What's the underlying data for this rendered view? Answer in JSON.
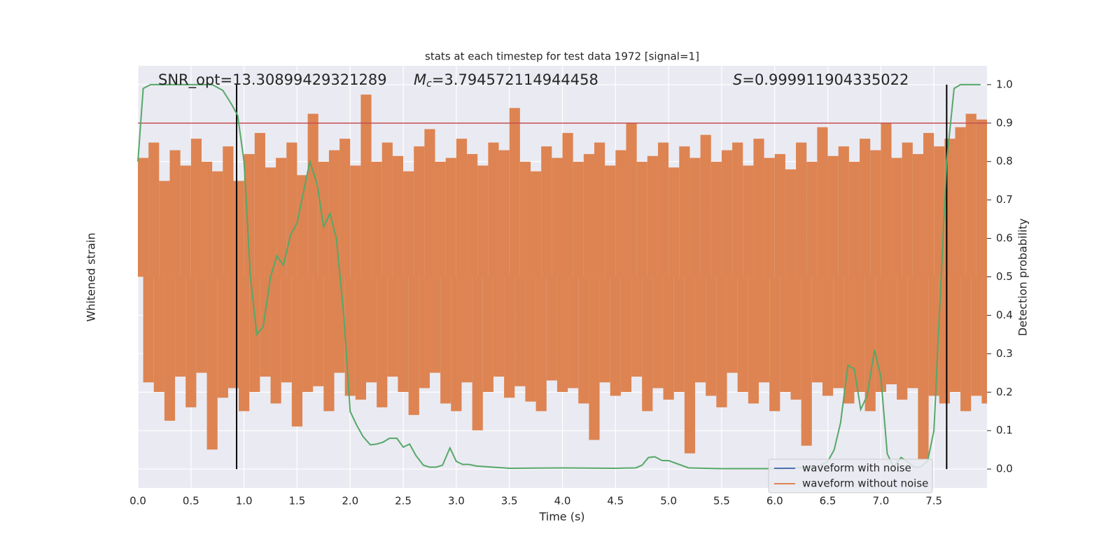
{
  "chart_data": {
    "type": "line",
    "title": "stats at each timestep for test data 1972 [signal=1]",
    "annotations": [
      {
        "text": "SNR_opt=13.30899429321289"
      },
      {
        "symbol": "M",
        "sub": "c",
        "text": "=3.794572114944458"
      },
      {
        "symbol": "S",
        "text": "=0.999911904335022"
      }
    ],
    "xlabel": "Time (s)",
    "ylabel": "Whitened strain",
    "y2label": "Detection probability",
    "xlim": [
      0,
      8.0
    ],
    "xticks": [
      {
        "value": 0,
        "label": "0.0"
      },
      {
        "value": 0.5,
        "label": "0.5"
      },
      {
        "value": 1,
        "label": "1.0"
      },
      {
        "value": 1.5,
        "label": "1.5"
      },
      {
        "value": 2,
        "label": "2.0"
      },
      {
        "value": 2.5,
        "label": "2.5"
      },
      {
        "value": 3,
        "label": "3.0"
      },
      {
        "value": 3.5,
        "label": "3.5"
      },
      {
        "value": 4,
        "label": "4.0"
      },
      {
        "value": 4.5,
        "label": "4.5"
      },
      {
        "value": 5,
        "label": "5.0"
      },
      {
        "value": 5.5,
        "label": "5.5"
      },
      {
        "value": 6,
        "label": "6.0"
      },
      {
        "value": 6.5,
        "label": "6.5"
      },
      {
        "value": 7,
        "label": "7.0"
      },
      {
        "value": 7.5,
        "label": "7.5"
      }
    ],
    "ylim": [
      -1.1,
      1.1
    ],
    "y2lim": [
      -0.049,
      1.049
    ],
    "y2ticks": [
      {
        "value": 0,
        "label": "0.0"
      },
      {
        "value": 0.1,
        "label": "0.1"
      },
      {
        "value": 0.2,
        "label": "0.2"
      },
      {
        "value": 0.3,
        "label": "0.3"
      },
      {
        "value": 0.4,
        "label": "0.4"
      },
      {
        "value": 0.5,
        "label": "0.5"
      },
      {
        "value": 0.6,
        "label": "0.6"
      },
      {
        "value": 0.7,
        "label": "0.7"
      },
      {
        "value": 0.8,
        "label": "0.8"
      },
      {
        "value": 0.9,
        "label": "0.9"
      },
      {
        "value": 1,
        "label": "1.0"
      }
    ],
    "grid": true,
    "legend": "lower right",
    "threshold": {
      "value": 0.9,
      "color": "#c44e52",
      "axis": "y2"
    },
    "vlines": {
      "x": [
        0.93,
        7.62
      ],
      "color": "#000000"
    },
    "series": [
      {
        "name": "waveform with noise",
        "color": "#4c72b0"
      },
      {
        "name": "waveform without noise",
        "color": "#dd8452",
        "values": [
          0.62,
          -0.55,
          0.7,
          -0.6,
          0.5,
          -0.75,
          0.66,
          -0.52,
          0.58,
          -0.68,
          0.72,
          -0.5,
          0.6,
          -0.9,
          0.55,
          -0.63,
          0.68,
          -0.58,
          0.5,
          -0.7,
          0.64,
          -0.6,
          0.75,
          -0.52,
          0.57,
          -0.66,
          0.62,
          -0.55,
          0.7,
          -0.78,
          0.53,
          -0.6,
          0.85,
          -0.57,
          0.6,
          -0.7,
          0.66,
          -0.5,
          0.72,
          -0.62,
          0.58,
          -0.64,
          0.95,
          -0.55,
          0.6,
          -0.68,
          0.7,
          -0.52,
          0.63,
          -0.6,
          0.55,
          -0.72,
          0.68,
          -0.58,
          0.77,
          -0.5,
          0.6,
          -0.66,
          0.62,
          -0.7,
          0.72,
          -0.55,
          0.64,
          -0.8,
          0.58,
          -0.6,
          0.7,
          -0.52,
          0.66,
          -0.63,
          0.88,
          -0.57,
          0.6,
          -0.65,
          0.55,
          -0.7,
          0.68,
          -0.54,
          0.62,
          -0.6,
          0.75,
          -0.58,
          0.6,
          -0.66,
          0.64,
          -0.85,
          0.7,
          -0.55,
          0.58,
          -0.62,
          0.66,
          -0.6,
          0.8,
          -0.52,
          0.6,
          -0.7,
          0.63,
          -0.58,
          0.7,
          -0.64,
          0.57,
          -0.6,
          0.68,
          -0.92,
          0.62,
          -0.55,
          0.74,
          -0.62,
          0.6,
          -0.68,
          0.66,
          -0.5,
          0.7,
          -0.6,
          0.58,
          -0.66,
          0.72,
          -0.55,
          0.62,
          -0.7,
          0.64,
          -0.6,
          0.56,
          -0.64,
          0.7,
          -0.88,
          0.6,
          -0.55,
          0.78,
          -0.62,
          0.63,
          -0.58,
          0.68,
          -0.66,
          0.6,
          -0.6,
          0.72,
          -0.7,
          0.66,
          -0.6,
          0.8,
          -0.56,
          0.62,
          -0.64,
          0.7,
          -0.58,
          0.64,
          -0.95,
          0.75,
          -0.62,
          0.68,
          -0.66,
          0.72,
          -0.6,
          0.78,
          -0.7,
          0.85,
          -0.62,
          0.82,
          -0.66
        ]
      },
      {
        "name": "detection probability",
        "color": "#55a868",
        "axis": "y2",
        "x": [
          0.0,
          0.05,
          0.12,
          0.3,
          0.5,
          0.7,
          0.8,
          0.88,
          0.94,
          1.0,
          1.06,
          1.12,
          1.18,
          1.25,
          1.31,
          1.37,
          1.44,
          1.5,
          1.56,
          1.62,
          1.69,
          1.75,
          1.81,
          1.87,
          1.94,
          2.0,
          2.06,
          2.12,
          2.19,
          2.25,
          2.31,
          2.37,
          2.44,
          2.5,
          2.56,
          2.62,
          2.69,
          2.75,
          2.81,
          2.87,
          2.94,
          3.0,
          3.06,
          3.12,
          3.19,
          3.5,
          4.0,
          4.5,
          4.69,
          4.75,
          4.81,
          4.87,
          4.94,
          5.0,
          5.19,
          5.5,
          6.0,
          6.4,
          6.5,
          6.56,
          6.62,
          6.69,
          6.75,
          6.81,
          6.87,
          6.94,
          7.0,
          7.06,
          7.12,
          7.19,
          7.25,
          7.31,
          7.37,
          7.44,
          7.5,
          7.56,
          7.62,
          7.69,
          7.75,
          7.94
        ],
        "values": [
          0.8,
          0.99,
          1.0,
          1.0,
          1.0,
          1.0,
          0.985,
          0.95,
          0.92,
          0.8,
          0.5,
          0.35,
          0.37,
          0.5,
          0.555,
          0.53,
          0.61,
          0.64,
          0.72,
          0.8,
          0.74,
          0.63,
          0.665,
          0.6,
          0.4,
          0.15,
          0.115,
          0.085,
          0.063,
          0.065,
          0.07,
          0.08,
          0.08,
          0.057,
          0.065,
          0.035,
          0.01,
          0.005,
          0.005,
          0.01,
          0.055,
          0.02,
          0.012,
          0.012,
          0.008,
          0.002,
          0.003,
          0.002,
          0.003,
          0.01,
          0.03,
          0.032,
          0.022,
          0.022,
          0.003,
          0.001,
          0.001,
          0.005,
          0.02,
          0.05,
          0.12,
          0.27,
          0.26,
          0.155,
          0.19,
          0.31,
          0.24,
          0.04,
          0.005,
          0.03,
          0.02,
          0.005,
          0.005,
          0.02,
          0.1,
          0.45,
          0.8,
          0.99,
          1.0,
          1.0
        ]
      }
    ]
  }
}
